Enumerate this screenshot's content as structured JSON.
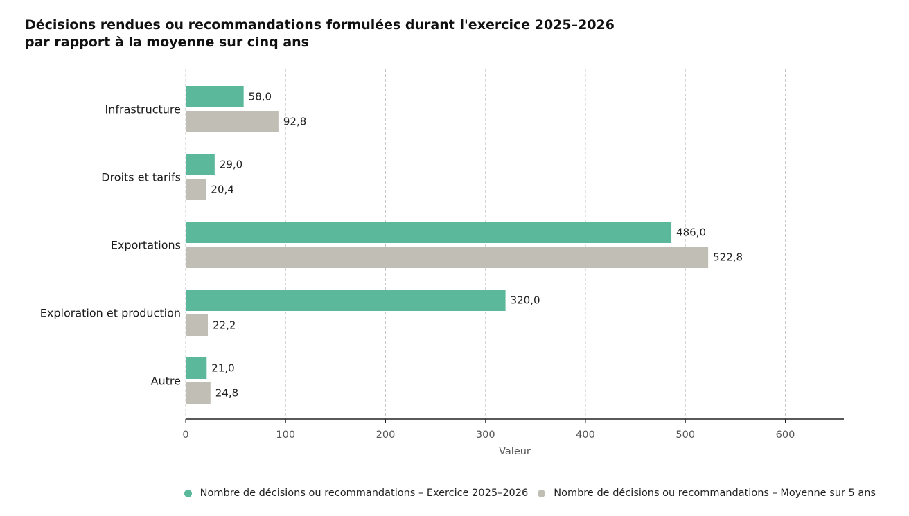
{
  "title_line1": "Décisions rendues ou recommandations formulées durant l'exercice 2025–2026",
  "title_line2": "par rapport à la moyenne sur cinq ans",
  "chart_data": {
    "type": "bar",
    "orientation": "horizontal",
    "title": "Décisions rendues ou recommandations formulées durant l'exercice 2025–2026 par rapport à la moyenne sur cinq ans",
    "xlabel": "Valeur",
    "ylabel": "",
    "xlim": [
      0,
      660
    ],
    "xticks": [
      0,
      100,
      200,
      300,
      400,
      500,
      600
    ],
    "grid": "vertical-dashed",
    "legend_position": "bottom-right",
    "categories": [
      "Infrastructure",
      "Droits et tarifs",
      "Exportations",
      "Exploration et production",
      "Autre"
    ],
    "series": [
      {
        "name": "Nombre de décisions ou recommandations – Exercice 2025–2026",
        "color": "#5cb89a",
        "values": [
          58.0,
          29.0,
          486.0,
          320.0,
          21.0
        ],
        "labels": [
          "58,0",
          "29,0",
          "486,0",
          "320,0",
          "21,0"
        ]
      },
      {
        "name": "Nombre de décisions ou recommandations – Moyenne sur 5 ans",
        "color": "#c0beb5",
        "values": [
          92.8,
          20.4,
          522.8,
          22.2,
          24.8
        ],
        "labels": [
          "92,8",
          "20,4",
          "522,8",
          "22,2",
          "24,8"
        ]
      }
    ]
  }
}
